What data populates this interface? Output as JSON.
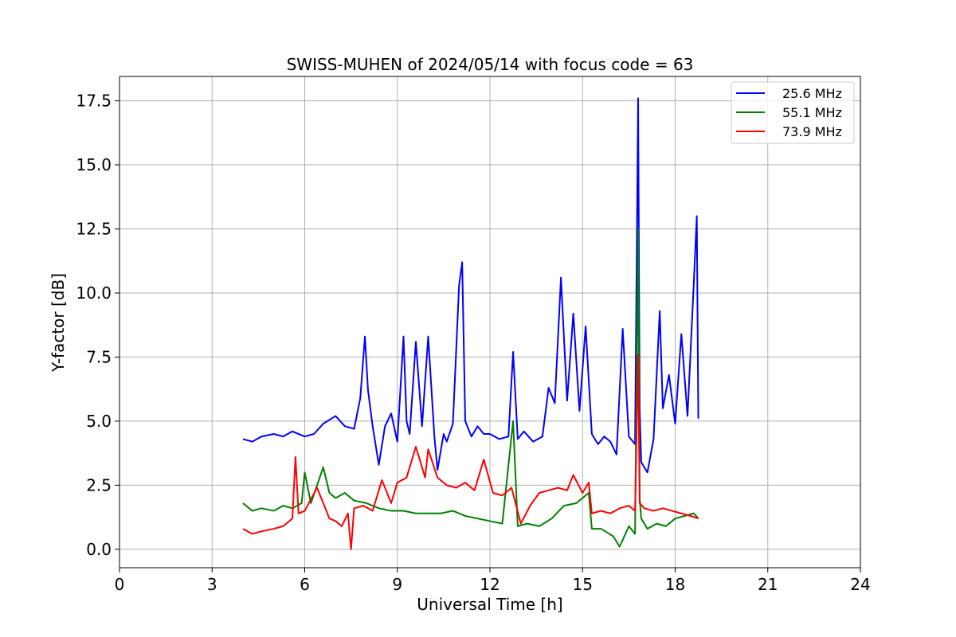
{
  "chart_data": {
    "type": "line",
    "title": "SWISS-MUHEN of 2024/05/14 with focus code = 63",
    "xlabel": "Universal Time [h]",
    "ylabel": "Y-factor [dB]",
    "xlim": [
      0,
      24
    ],
    "ylim": [
      -0.72,
      18.45
    ],
    "xticks": [
      0,
      3,
      6,
      9,
      12,
      15,
      18,
      21,
      24
    ],
    "xtick_labels": [
      "0",
      "3",
      "6",
      "9",
      "12",
      "15",
      "18",
      "21",
      "24"
    ],
    "yticks": [
      0.0,
      2.5,
      5.0,
      7.5,
      10.0,
      12.5,
      15.0,
      17.5
    ],
    "ytick_labels": [
      "0.0",
      "2.5",
      "5.0",
      "7.5",
      "10.0",
      "12.5",
      "15.0",
      "17.5"
    ],
    "grid": true,
    "legend_position": "top-right",
    "series": [
      {
        "name": "25.6 MHz",
        "color": "#0000ff",
        "x": [
          4.0,
          4.3,
          4.6,
          5.0,
          5.3,
          5.6,
          6.0,
          6.3,
          6.6,
          7.0,
          7.3,
          7.6,
          7.8,
          7.95,
          8.05,
          8.2,
          8.4,
          8.6,
          8.8,
          9.0,
          9.2,
          9.3,
          9.4,
          9.6,
          9.8,
          10.0,
          10.2,
          10.3,
          10.5,
          10.6,
          10.8,
          11.0,
          11.1,
          11.2,
          11.4,
          11.6,
          11.8,
          12.0,
          12.3,
          12.6,
          12.75,
          12.9,
          13.1,
          13.4,
          13.7,
          13.9,
          14.1,
          14.3,
          14.5,
          14.7,
          14.9,
          15.1,
          15.3,
          15.5,
          15.7,
          15.9,
          16.1,
          16.3,
          16.5,
          16.7,
          16.8,
          16.85,
          16.9,
          17.1,
          17.3,
          17.5,
          17.6,
          17.8,
          18.0,
          18.2,
          18.4,
          18.6,
          18.7,
          18.75
        ],
        "y": [
          4.3,
          4.2,
          4.4,
          4.5,
          4.4,
          4.6,
          4.4,
          4.5,
          4.9,
          5.2,
          4.8,
          4.7,
          5.9,
          8.3,
          6.2,
          4.8,
          3.3,
          4.8,
          5.3,
          4.2,
          8.3,
          5.0,
          4.5,
          8.1,
          4.8,
          8.3,
          4.4,
          3.1,
          4.5,
          4.2,
          4.9,
          10.3,
          11.2,
          5.0,
          4.4,
          4.8,
          4.5,
          4.5,
          4.3,
          4.4,
          7.7,
          4.3,
          4.6,
          4.2,
          4.4,
          6.3,
          5.7,
          10.6,
          5.8,
          9.2,
          5.4,
          8.7,
          4.5,
          4.1,
          4.4,
          4.2,
          3.7,
          8.6,
          4.4,
          4.1,
          17.6,
          5.5,
          3.4,
          3.0,
          4.3,
          9.3,
          5.5,
          6.8,
          4.9,
          8.4,
          5.2,
          10.3,
          13.0,
          5.1
        ]
      },
      {
        "name": "55.1 MHz",
        "color": "#008000",
        "x": [
          4.0,
          4.3,
          4.6,
          5.0,
          5.3,
          5.6,
          5.9,
          6.0,
          6.2,
          6.6,
          6.8,
          7.0,
          7.3,
          7.6,
          8.0,
          8.4,
          8.8,
          9.2,
          9.6,
          10.0,
          10.4,
          10.8,
          11.2,
          11.6,
          12.0,
          12.4,
          12.75,
          12.9,
          13.2,
          13.6,
          14.0,
          14.4,
          14.8,
          15.2,
          15.3,
          15.6,
          16.0,
          16.2,
          16.5,
          16.7,
          16.8,
          16.85,
          16.9,
          17.1,
          17.4,
          17.7,
          18.0,
          18.3,
          18.6,
          18.75
        ],
        "y": [
          1.8,
          1.5,
          1.6,
          1.5,
          1.7,
          1.6,
          1.8,
          3.0,
          1.8,
          3.2,
          2.2,
          2.0,
          2.2,
          1.9,
          1.8,
          1.6,
          1.5,
          1.5,
          1.4,
          1.4,
          1.4,
          1.5,
          1.3,
          1.2,
          1.1,
          1.0,
          5.0,
          0.9,
          1.0,
          0.9,
          1.2,
          1.7,
          1.8,
          2.2,
          0.8,
          0.8,
          0.5,
          0.1,
          0.9,
          0.6,
          12.5,
          2.0,
          1.2,
          0.8,
          1.0,
          0.9,
          1.2,
          1.3,
          1.4,
          1.2
        ]
      },
      {
        "name": "73.9 MHz",
        "color": "#ff0000",
        "x": [
          4.0,
          4.3,
          4.6,
          5.0,
          5.3,
          5.6,
          5.7,
          5.8,
          6.0,
          6.4,
          6.8,
          7.0,
          7.2,
          7.4,
          7.5,
          7.6,
          7.9,
          8.2,
          8.5,
          8.8,
          9.0,
          9.3,
          9.6,
          9.9,
          10.0,
          10.3,
          10.6,
          10.9,
          11.2,
          11.5,
          11.8,
          12.1,
          12.4,
          12.7,
          13.0,
          13.3,
          13.6,
          13.9,
          14.2,
          14.5,
          14.7,
          15.0,
          15.2,
          15.3,
          15.6,
          15.9,
          16.2,
          16.5,
          16.7,
          16.8,
          16.85,
          17.0,
          17.3,
          17.6,
          17.9,
          18.2,
          18.5,
          18.75
        ],
        "y": [
          0.8,
          0.6,
          0.7,
          0.8,
          0.9,
          1.2,
          3.6,
          1.4,
          1.5,
          2.4,
          1.2,
          1.1,
          0.9,
          1.4,
          0.0,
          1.6,
          1.7,
          1.5,
          2.7,
          1.8,
          2.6,
          2.8,
          4.0,
          2.8,
          3.9,
          2.8,
          2.5,
          2.4,
          2.6,
          2.3,
          3.5,
          2.2,
          2.1,
          2.4,
          1.0,
          1.7,
          2.2,
          2.3,
          2.4,
          2.3,
          2.9,
          2.2,
          2.6,
          1.4,
          1.5,
          1.4,
          1.6,
          1.7,
          1.5,
          7.6,
          1.8,
          1.6,
          1.5,
          1.6,
          1.5,
          1.4,
          1.3,
          1.2
        ]
      }
    ]
  }
}
